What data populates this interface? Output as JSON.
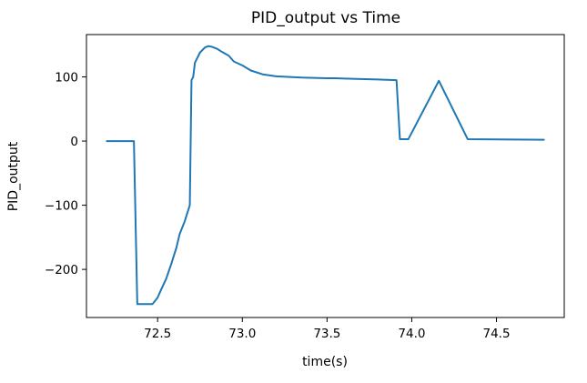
{
  "chart_data": {
    "type": "line",
    "title": "PID_output vs Time",
    "xlabel": "time(s)",
    "ylabel": "PID_output",
    "xlim": [
      72.08,
      74.9
    ],
    "ylim": [
      -275,
      166
    ],
    "xticks": [
      72.5,
      73.0,
      73.5,
      74.0,
      74.5
    ],
    "xtick_labels": [
      "72.5",
      "73.0",
      "73.5",
      "74.0",
      "74.5"
    ],
    "yticks": [
      100,
      0,
      -100,
      -200
    ],
    "ytick_labels": [
      "100",
      "0",
      "−100",
      "−200"
    ],
    "grid": false,
    "series": [
      {
        "color": "#1f77b4",
        "x": [
          72.2,
          72.36,
          72.38,
          72.47,
          72.5,
          72.52,
          72.55,
          72.58,
          72.61,
          72.63,
          72.66,
          72.69,
          72.7,
          72.71,
          72.72,
          72.75,
          72.78,
          72.8,
          72.82,
          72.85,
          72.88,
          72.92,
          72.95,
          73.0,
          73.05,
          73.12,
          73.2,
          73.35,
          73.5,
          73.55,
          73.65,
          73.8,
          73.91,
          73.93,
          73.98,
          74.16,
          74.33,
          74.78
        ],
        "y": [
          0,
          0,
          -254,
          -254,
          -244,
          -232,
          -215,
          -192,
          -167,
          -145,
          -125,
          -100,
          95,
          100,
          122,
          138,
          146,
          148,
          147,
          144,
          139,
          133,
          124,
          118,
          110,
          104,
          101,
          99,
          98,
          98,
          97,
          96,
          95,
          3,
          3,
          94,
          3,
          2
        ]
      }
    ]
  }
}
